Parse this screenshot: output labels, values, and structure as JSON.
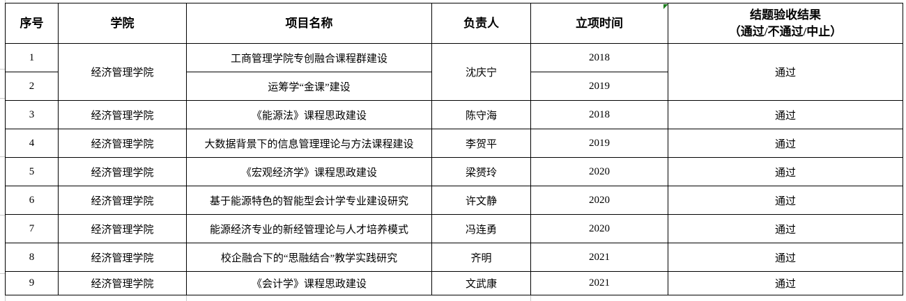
{
  "app_context": "spreadsheet-table",
  "markers": {
    "green_triangle_color": "#1f7d1f"
  },
  "table": {
    "columns": [
      {
        "key": "index",
        "label": "序号"
      },
      {
        "key": "college",
        "label": "学院"
      },
      {
        "key": "project",
        "label": "项目名称"
      },
      {
        "key": "leader",
        "label": "负责人"
      },
      {
        "key": "year",
        "label": "立项时间"
      },
      {
        "key": "result",
        "label": "结题验收结果",
        "label_line2": "（通过/不通过/中止）"
      }
    ],
    "rows": [
      {
        "index": "1",
        "college": "经济管理学院",
        "college_rowspan": 2,
        "project": "工商管理学院专创融合课程群建设",
        "leader": "沈庆宁",
        "leader_rowspan": 2,
        "year": "2018",
        "result": "通过",
        "result_rowspan": 2
      },
      {
        "index": "2",
        "project": "运筹学“金课”建设",
        "year": "2019"
      },
      {
        "index": "3",
        "college": "经济管理学院",
        "project": "《能源法》课程思政建设",
        "leader": "陈守海",
        "year": "2018",
        "result": "通过"
      },
      {
        "index": "4",
        "college": "经济管理学院",
        "project": "大数据背景下的信息管理理论与方法课程建设",
        "leader": "李贺平",
        "year": "2019",
        "result": "通过"
      },
      {
        "index": "5",
        "college": "经济管理学院",
        "project": "《宏观经济学》课程思政建设",
        "leader": "梁赟玲",
        "year": "2020",
        "result": "通过"
      },
      {
        "index": "6",
        "college": "经济管理学院",
        "project": "基于能源特色的智能型会计学专业建设研究",
        "leader": "许文静",
        "year": "2020",
        "result": "通过"
      },
      {
        "index": "7",
        "college": "经济管理学院",
        "project": "能源经济专业的新经管理论与人才培养模式",
        "leader": "冯连勇",
        "year": "2020",
        "result": "通过"
      },
      {
        "index": "8",
        "college": "经济管理学院",
        "project": "校企融合下的“思融结合”教学实践研究",
        "leader": "齐明",
        "year": "2021",
        "result": "通过"
      },
      {
        "index": "9",
        "college": "经济管理学院",
        "project": "《会计学》课程思政建设",
        "leader": "文武康",
        "year": "2021",
        "result": "通过"
      }
    ]
  }
}
